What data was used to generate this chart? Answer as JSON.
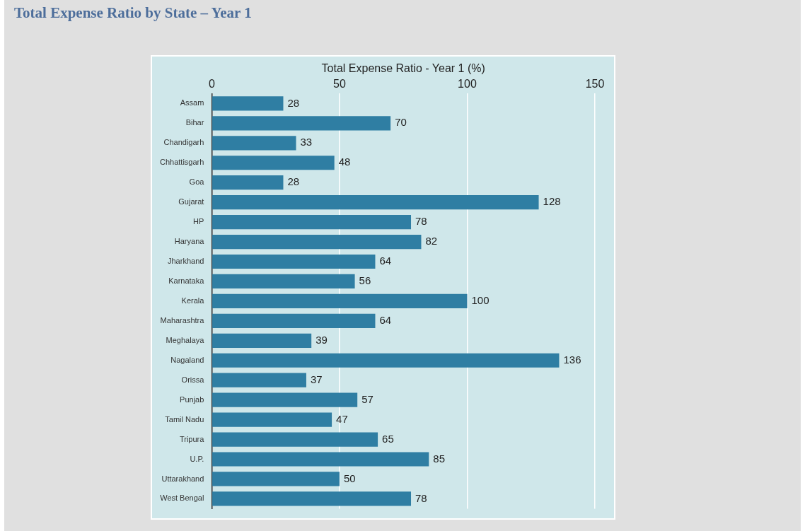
{
  "chart_data": {
    "type": "bar",
    "orientation": "horizontal",
    "title": "Total Expense Ratio by State – Year 1",
    "xlabel": "Total Expense Ratio - Year 1 (%)",
    "categories": [
      "Assam",
      "Bihar",
      "Chandigarh",
      "Chhattisgarh",
      "Goa",
      "Gujarat",
      "HP",
      "Haryana",
      "Jharkhand",
      "Karnataka",
      "Kerala",
      "Maharashtra",
      "Meghalaya",
      "Nagaland",
      "Orissa",
      "Punjab",
      "Tamil Nadu",
      "Tripura",
      "U.P.",
      "Uttarakhand",
      "West Bengal"
    ],
    "values": [
      28,
      70,
      33,
      48,
      28,
      128,
      78,
      82,
      64,
      56,
      100,
      64,
      39,
      136,
      37,
      57,
      47,
      65,
      85,
      50,
      78
    ],
    "color": "#2f7ea3",
    "xlim": [
      0,
      150
    ],
    "xticks": [
      0,
      50,
      100,
      150
    ],
    "grid": "x",
    "data_labels": true,
    "legend": false
  }
}
